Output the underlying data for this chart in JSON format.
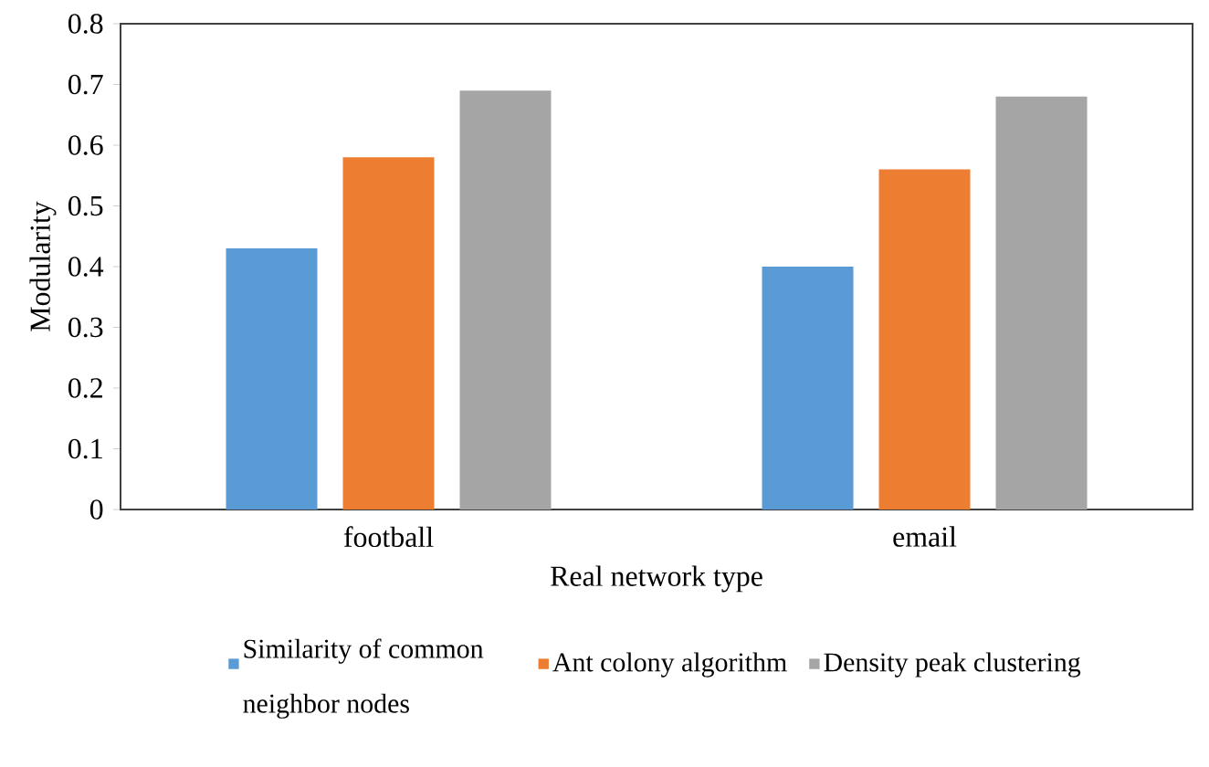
{
  "chart_data": {
    "type": "bar",
    "xlabel": "Real network type",
    "ylabel": "Modularity",
    "categories": [
      "football",
      "email"
    ],
    "series": [
      {
        "name": "Similarity of common neighbor nodes",
        "color": "#5b9bd5",
        "values": [
          0.43,
          0.4
        ]
      },
      {
        "name": "Ant colony algorithm",
        "color": "#ed7d31",
        "values": [
          0.58,
          0.56
        ]
      },
      {
        "name": "Density peak clustering",
        "color": "#a5a5a5",
        "values": [
          0.69,
          0.68
        ]
      }
    ],
    "ylim": [
      0,
      0.8
    ],
    "yticks": [
      0,
      0.1,
      0.2,
      0.3,
      0.4,
      0.5,
      0.6,
      0.7,
      0.8
    ],
    "grid": false,
    "legend": "bottom"
  }
}
